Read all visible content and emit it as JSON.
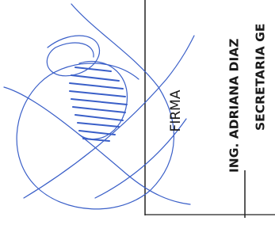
{
  "document": {
    "label": "FIRMA",
    "name": "ING. ADRIANA DIAZ",
    "title": "SECRETARIA GE"
  }
}
